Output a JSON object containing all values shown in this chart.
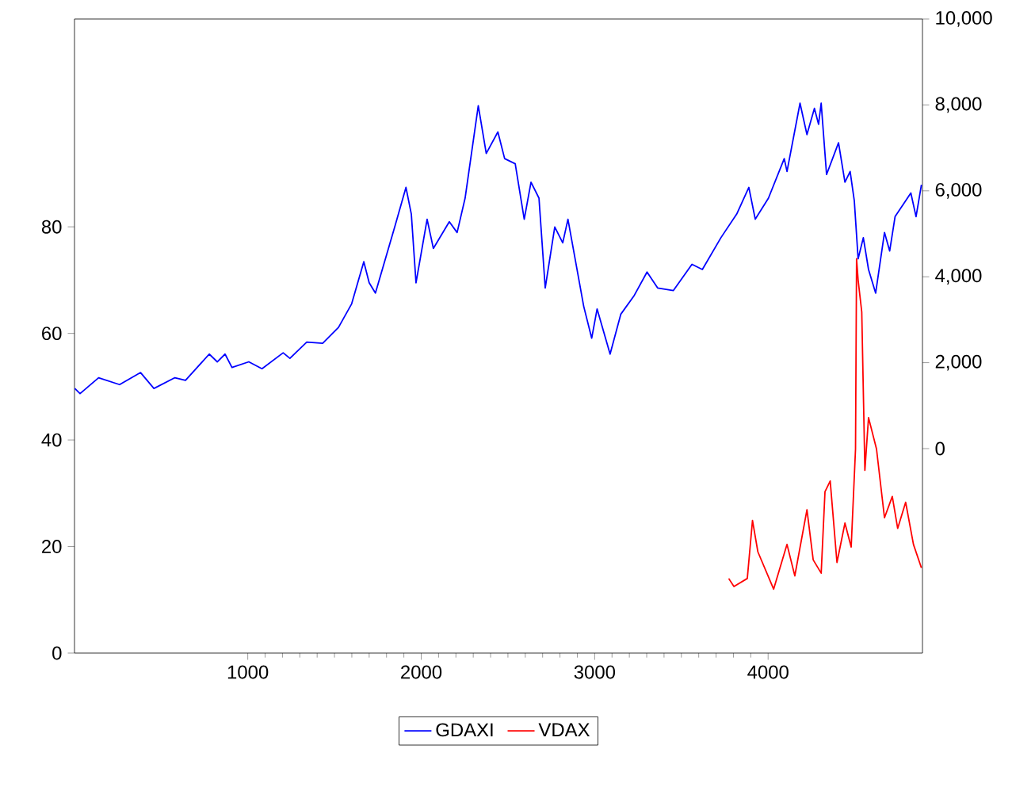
{
  "chart_data": {
    "type": "line",
    "xlim": [
      1,
      4890
    ],
    "xticks": [
      1000,
      2000,
      3000,
      4000
    ],
    "ylim": [
      0,
      119
    ],
    "yticks": [
      0,
      20,
      40,
      60,
      80
    ],
    "y2lim": [
      -4760,
      10000
    ],
    "y2ticks": [
      {
        "value": 0,
        "label": "0"
      },
      {
        "value": 2000,
        "label": "2,000"
      },
      {
        "value": 4000,
        "label": "4,000"
      },
      {
        "value": 6000,
        "label": "6,000"
      },
      {
        "value": 8000,
        "label": "8,000"
      },
      {
        "value": 10000,
        "label": "10,000"
      }
    ],
    "legend": "bottom",
    "grid": false,
    "series": [
      {
        "name": "GDAXI",
        "color": "#0000ff",
        "axis": "y2",
        "x": [
          3,
          33,
          140,
          261,
          382,
          459,
          580,
          641,
          778,
          824,
          869,
          909,
          1006,
          1082,
          1204,
          1243,
          1340,
          1432,
          1523,
          1599,
          1669,
          1700,
          1736,
          1851,
          1912,
          1943,
          1970,
          2034,
          2070,
          2162,
          2207,
          2253,
          2329,
          2375,
          2442,
          2481,
          2542,
          2594,
          2633,
          2679,
          2715,
          2770,
          2816,
          2846,
          2937,
          2983,
          3014,
          3089,
          3151,
          3226,
          3302,
          3363,
          3454,
          3561,
          3621,
          3728,
          3819,
          3889,
          3926,
          4002,
          4093,
          4109,
          4184,
          4224,
          4267,
          4291,
          4306,
          4337,
          4406,
          4443,
          4473,
          4497,
          4519,
          4549,
          4579,
          4620,
          4671,
          4701,
          4732,
          4823,
          4853,
          4884
        ],
        "values": [
          1400,
          1280,
          1650,
          1490,
          1770,
          1400,
          1650,
          1590,
          2200,
          2020,
          2200,
          1890,
          2020,
          1860,
          2230,
          2100,
          2480,
          2450,
          2820,
          3370,
          4350,
          3860,
          3620,
          5210,
          6080,
          5460,
          3860,
          5340,
          4660,
          5280,
          5030,
          5830,
          7980,
          6870,
          7370,
          6750,
          6630,
          5340,
          6200,
          5830,
          3740,
          5160,
          4790,
          5340,
          3310,
          2570,
          3250,
          2200,
          3130,
          3550,
          4110,
          3740,
          3680,
          4290,
          4170,
          4910,
          5460,
          6080,
          5340,
          5830,
          6750,
          6450,
          8040,
          7310,
          7920,
          7550,
          8040,
          6380,
          7120,
          6200,
          6450,
          5770,
          4420,
          4910,
          4170,
          3620,
          5030,
          4600,
          5400,
          5950,
          5400,
          6140
        ]
      },
      {
        "name": "VDAX",
        "color": "#ff0000",
        "axis": "y",
        "x": [
          3773,
          3803,
          3880,
          3910,
          3941,
          4032,
          4109,
          4154,
          4224,
          4260,
          4306,
          4328,
          4358,
          4397,
          4443,
          4479,
          4504,
          4510,
          4519,
          4540,
          4558,
          4579,
          4625,
          4671,
          4716,
          4747,
          4793,
          4838,
          4884
        ],
        "values": [
          14.0,
          12.5,
          14.0,
          24.9,
          19.0,
          12.0,
          20.4,
          14.5,
          26.9,
          17.5,
          15.0,
          30.3,
          32.3,
          17.0,
          24.4,
          19.9,
          38.3,
          74.0,
          70.0,
          64.0,
          34.3,
          44.2,
          38.3,
          25.4,
          29.4,
          23.4,
          28.3,
          20.4,
          16.0
        ]
      }
    ]
  }
}
